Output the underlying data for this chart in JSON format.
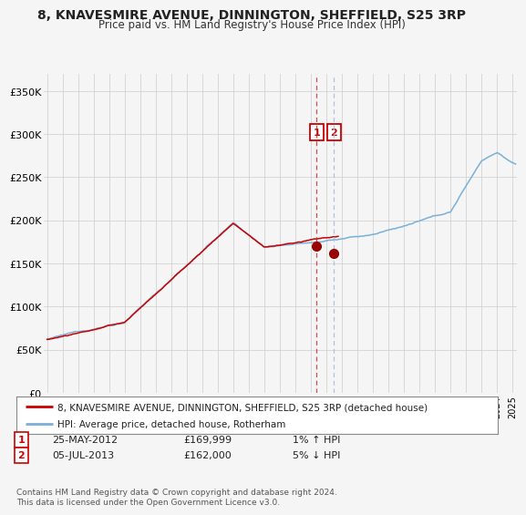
{
  "title": "8, KNAVESMIRE AVENUE, DINNINGTON, SHEFFIELD, S25 3RP",
  "subtitle": "Price paid vs. HM Land Registry's House Price Index (HPI)",
  "ylabel_ticks": [
    "£0",
    "£50K",
    "£100K",
    "£150K",
    "£200K",
    "£250K",
    "£300K",
    "£350K"
  ],
  "ytick_values": [
    0,
    50000,
    100000,
    150000,
    200000,
    250000,
    300000,
    350000
  ],
  "ylim": [
    0,
    370000
  ],
  "xlim_start": 1994.8,
  "xlim_end": 2025.3,
  "hpi_color": "#7ab0d8",
  "price_color": "#cc0000",
  "marker1_date": 2012.38,
  "marker1_price": 169999,
  "marker1_label": "25-MAY-2012",
  "marker1_pct": "1% ↑ HPI",
  "marker2_date": 2013.5,
  "marker2_price": 162000,
  "marker2_label": "05-JUL-2013",
  "marker2_pct": "5% ↓ HPI",
  "legend_line1": "8, KNAVESMIRE AVENUE, DINNINGTON, SHEFFIELD, S25 3RP (detached house)",
  "legend_line2": "HPI: Average price, detached house, Rotherham",
  "footnote": "Contains HM Land Registry data © Crown copyright and database right 2024.\nThis data is licensed under the Open Government Licence v3.0.",
  "bg_color": "#f5f5f5",
  "plot_bg": "#f5f5f5",
  "grid_color": "#cccccc"
}
